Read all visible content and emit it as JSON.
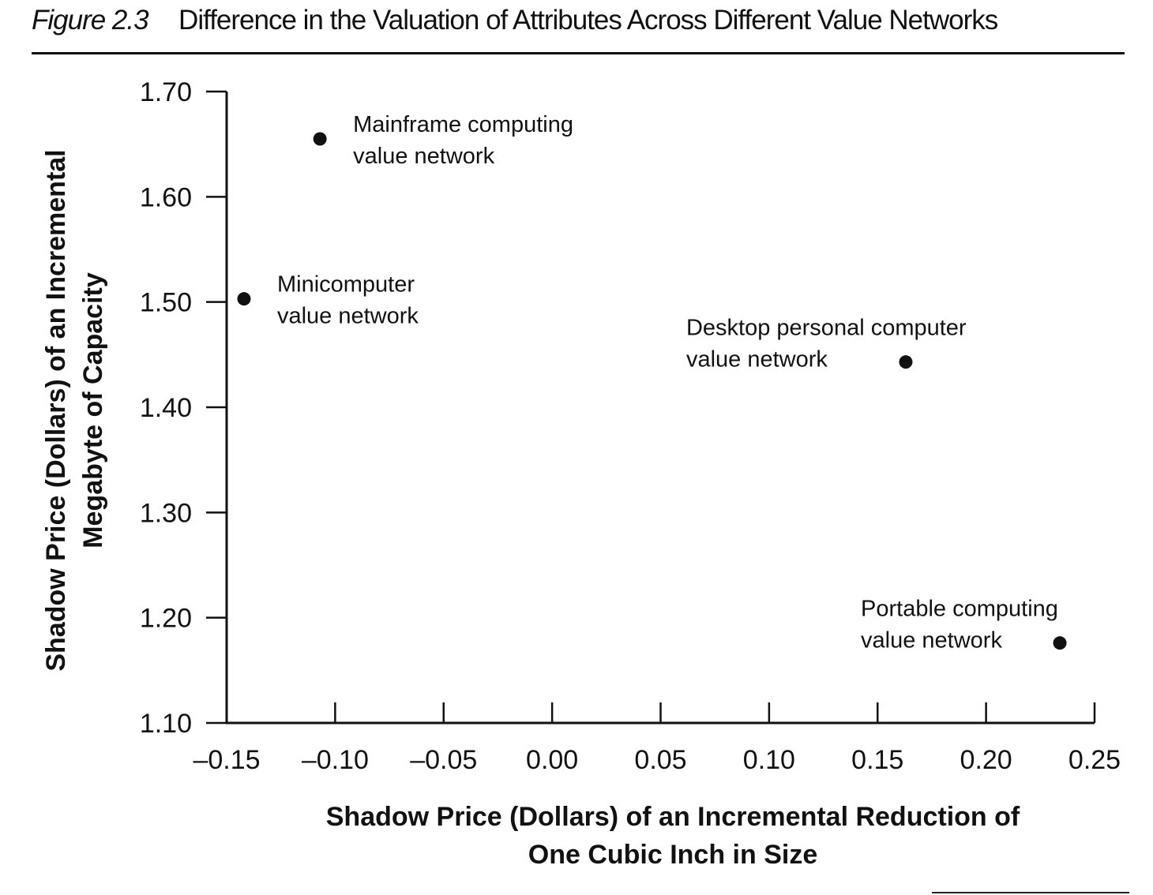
{
  "figure": {
    "label": "Figure 2.3",
    "title": "Difference in the Valuation of Attributes Across Different Value Networks"
  },
  "chart_data": {
    "type": "scatter",
    "title": "Difference in the Valuation of Attributes Across Different Value Networks",
    "xlabel_lines": [
      "Shadow Price (Dollars) of an Incremental Reduction of",
      "One Cubic Inch in Size"
    ],
    "ylabel_lines": [
      "Shadow Price (Dollars) of an Incremental",
      "Megabyte of Capacity"
    ],
    "xlim": [
      -0.15,
      0.25
    ],
    "ylim": [
      1.1,
      1.7
    ],
    "x_ticks": [
      -0.15,
      -0.1,
      -0.05,
      0.0,
      0.05,
      0.1,
      0.15,
      0.2,
      0.25
    ],
    "x_tick_labels": [
      "–0.15",
      "–0.10",
      "–0.05",
      "0.00",
      "0.05",
      "0.10",
      "0.15",
      "0.20",
      "0.25"
    ],
    "y_ticks": [
      1.1,
      1.2,
      1.3,
      1.4,
      1.5,
      1.6,
      1.7
    ],
    "y_tick_labels": [
      "1.10",
      "1.20",
      "1.30",
      "1.40",
      "1.50",
      "1.60",
      "1.70"
    ],
    "grid": false,
    "legend": "none",
    "marker_color": "#111111",
    "points": [
      {
        "x": -0.107,
        "y": 1.655,
        "label": [
          "Mainframe computing",
          "value network"
        ],
        "label_side": "right"
      },
      {
        "x": -0.142,
        "y": 1.503,
        "label": [
          "Minicomputer",
          "value network"
        ],
        "label_side": "right"
      },
      {
        "x": 0.163,
        "y": 1.443,
        "label": [
          "Desktop personal computer",
          "value network"
        ],
        "label_side": "left"
      },
      {
        "x": 0.234,
        "y": 1.176,
        "label": [
          "Portable computing",
          "value network"
        ],
        "label_side": "left"
      }
    ]
  }
}
